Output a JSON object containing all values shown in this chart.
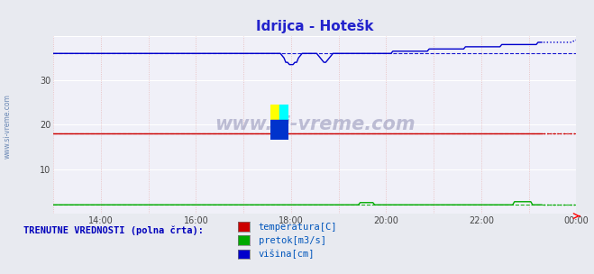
{
  "title": "Idrijca - Hotešk",
  "title_color": "#2222cc",
  "bg_color": "#e8eaf0",
  "plot_bg_color": "#f0f0f8",
  "grid_color_white": "#ffffff",
  "grid_color_pink": "#e8b8b8",
  "ylim": [
    0,
    40
  ],
  "ytick_values": [
    10,
    20,
    30
  ],
  "ytick_labels": [
    "10",
    "20",
    "30"
  ],
  "xtick_labels": [
    "14:00",
    "16:00",
    "18:00",
    "20:00",
    "22:00",
    "00:00"
  ],
  "temp_color": "#cc0000",
  "pretok_color": "#00aa00",
  "visina_color": "#0000cc",
  "watermark_text": "www.si-vreme.com",
  "watermark_color": "#9999bb",
  "sidebar_text": "www.si-vreme.com",
  "sidebar_color": "#5577aa",
  "legend_header": "TRENUTNE VREDNOSTI (polna črta):",
  "legend_header_color": "#0000bb",
  "legend_items": [
    {
      "label": "temperatura[C]",
      "color": "#cc0000"
    },
    {
      "label": "pretok[m3/s]",
      "color": "#00aa00"
    },
    {
      "label": "višina[cm]",
      "color": "#0000cc"
    }
  ],
  "legend_text_color": "#0055bb",
  "n_points": 289,
  "temp_level": 18.0,
  "pretok_level": 2.0,
  "visina_base": 36.0,
  "visina_final": 38.8,
  "avg_visina": 36.0,
  "avg_temp": 18.0,
  "avg_pretok": 2.0
}
